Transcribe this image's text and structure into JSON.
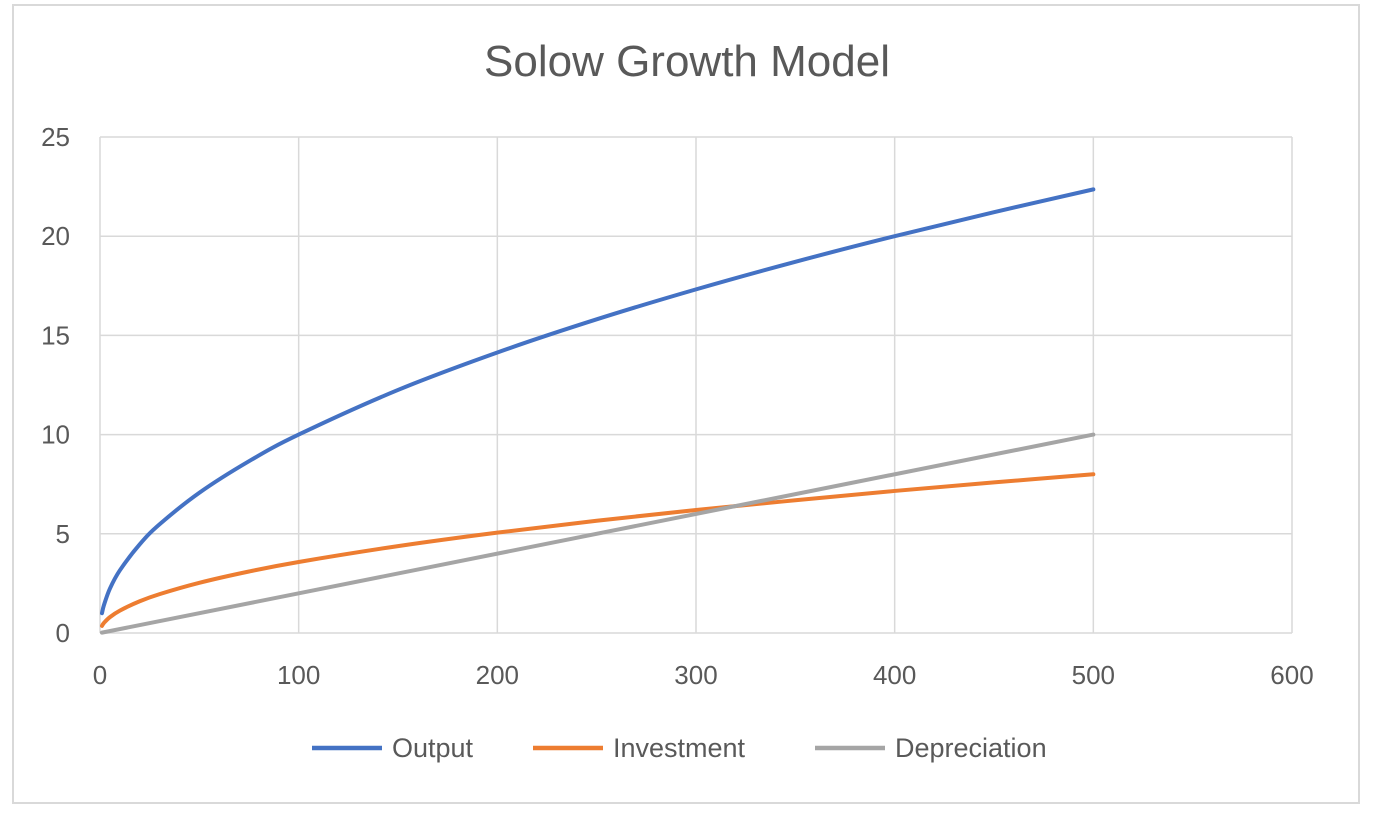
{
  "chart_data": {
    "type": "line",
    "title": "Solow Growth Model",
    "xlabel": "",
    "ylabel": "",
    "xlim": [
      0,
      600
    ],
    "ylim": [
      0,
      25
    ],
    "xticks": [
      "0",
      "100",
      "200",
      "300",
      "400",
      "500",
      "600"
    ],
    "yticks": [
      "0",
      "5",
      "10",
      "15",
      "20",
      "25"
    ],
    "grid": true,
    "legend_position": "bottom",
    "series": [
      {
        "name": "Output",
        "color": "#4472c4",
        "x": [
          1,
          2,
          5,
          10,
          20,
          30,
          50,
          75,
          100,
          150,
          200,
          250,
          300,
          350,
          400,
          450,
          500
        ],
        "y": [
          1,
          1.41,
          2.24,
          3.16,
          4.47,
          5.48,
          7.07,
          8.66,
          10,
          12.25,
          14.14,
          15.81,
          17.32,
          18.71,
          20,
          21.21,
          22.36
        ]
      },
      {
        "name": "Investment",
        "color": "#ed7d31",
        "x": [
          1,
          2,
          5,
          10,
          20,
          30,
          50,
          75,
          100,
          150,
          200,
          250,
          300,
          350,
          400,
          450,
          500
        ],
        "y": [
          0.36,
          0.51,
          0.8,
          1.13,
          1.6,
          1.96,
          2.53,
          3.1,
          3.58,
          4.38,
          5.06,
          5.66,
          6.2,
          6.69,
          7.16,
          7.59,
          8
        ]
      },
      {
        "name": "Depreciation",
        "color": "#a5a5a5",
        "x": [
          1,
          500
        ],
        "y": [
          0.02,
          10
        ]
      }
    ]
  }
}
